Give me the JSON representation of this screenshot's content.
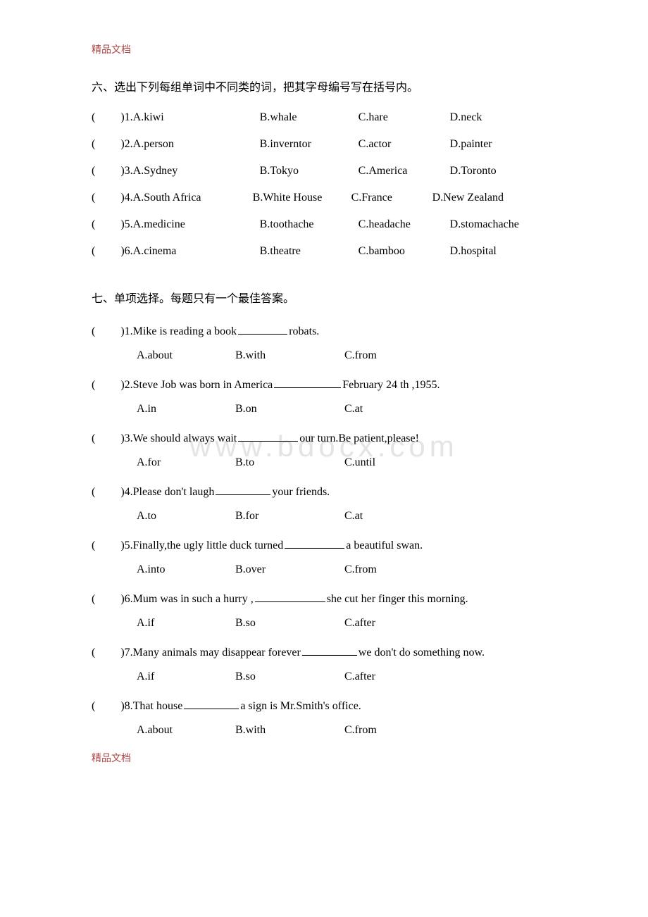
{
  "header": "精品文档",
  "footer": "精品文档",
  "watermark": "www.bdocx.com",
  "section6": {
    "title": "六、选出下列每组单词中不同类的词，把其字母编号写在括号内。",
    "questions": [
      {
        "num": "1",
        "opts": {
          "A": "kiwi",
          "B": "whale",
          "C": "hare",
          "D": "neck"
        }
      },
      {
        "num": "2",
        "opts": {
          "A": "person",
          "B": "inverntor",
          "C": "actor",
          "D": "painter"
        }
      },
      {
        "num": "3",
        "opts": {
          "A": "Sydney",
          "B": "Tokyo",
          "C": "America",
          "D": "Toronto"
        }
      },
      {
        "num": "4",
        "opts": {
          "A": "South Africa",
          "B": "White House",
          "C": "France",
          "D": "New Zealand"
        }
      },
      {
        "num": "5",
        "opts": {
          "A": "medicine",
          "B": "toothache",
          "C": "headache",
          "D": "stomachache"
        }
      },
      {
        "num": "6",
        "opts": {
          "A": "cinema",
          "B": "theatre",
          "C": "bamboo",
          "D": "hospital"
        }
      }
    ],
    "option_widths": {
      "col1": 180,
      "col2": 140,
      "col3": 130,
      "col4": 130
    },
    "q4_widths": {
      "col1": 170,
      "col2": 140,
      "col3": 115,
      "col4": 150
    }
  },
  "section7": {
    "title": "七、单项选择。每题只有一个最佳答案。",
    "answer_widths": {
      "col1": 140,
      "col2": 155,
      "col3": 120
    },
    "questions": [
      {
        "num": "1",
        "pre": "Mike is reading a book",
        "blank_w": 70,
        "post": "robats.",
        "ans": {
          "A": "about",
          "B": "with",
          "C": "from"
        }
      },
      {
        "num": "2",
        "pre": "Steve Job was born in America",
        "blank_w": 95,
        "post": "February 24 th ,1955.",
        "ans": {
          "A": "in",
          "B": "on",
          "C": "at"
        }
      },
      {
        "num": "3",
        "pre": "We should always wait",
        "blank_w": 85,
        "post": "our turn.Be patient,please!",
        "ans": {
          "A": "for",
          "B": "to",
          "C": "until"
        }
      },
      {
        "num": "4",
        "pre": "Please don't laugh",
        "blank_w": 78,
        "post": "your friends.",
        "ans": {
          "A": "to",
          "B": "for",
          "C": "at"
        }
      },
      {
        "num": "5",
        "pre": "Finally,the ugly little duck turned",
        "blank_w": 85,
        "post": "a beautiful swan.",
        "ans": {
          "A": "into",
          "B": "over",
          "C": "from"
        }
      },
      {
        "num": "6",
        "pre": "Mum was in such a hurry ,",
        "blank_w": 100,
        "post": "she cut her finger this morning.",
        "ans": {
          "A": "if",
          "B": "so",
          "C": "after"
        }
      },
      {
        "num": "7",
        "pre": "Many animals may disappear forever",
        "blank_w": 78,
        "post": "we don't do something now.",
        "ans": {
          "A": "if",
          "B": "so",
          "C": "after"
        }
      },
      {
        "num": "8",
        "pre": "That house",
        "blank_w": 78,
        "post": "a sign is Mr.Smith's office.",
        "ans": {
          "A": "about",
          "B": "with",
          "C": "from"
        }
      }
    ]
  }
}
